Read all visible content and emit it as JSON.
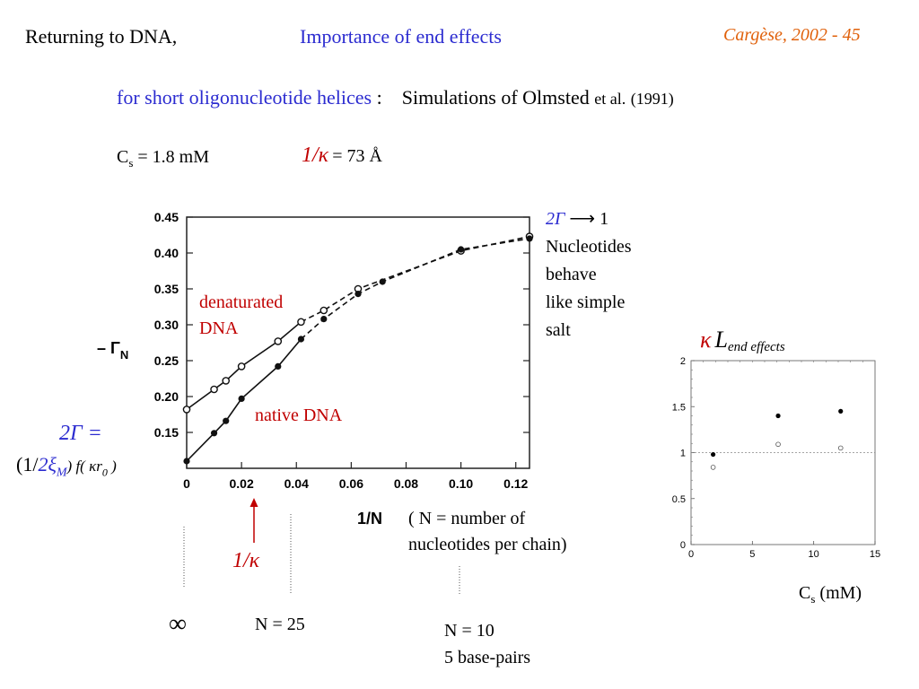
{
  "header": {
    "left": "Returning to DNA,",
    "center": "Importance of end effects",
    "right": "Cargèse, 2002 - 45"
  },
  "subtitle": {
    "blue_part": "for short oligonucleotide helices",
    "colon": ":",
    "black_part": "Simulations of Olmsted",
    "etal": "et al.",
    "year": "(1991)"
  },
  "params": {
    "cs_symbol": "C",
    "cs_sub": "s",
    "cs_value": "= 1.8 mM",
    "kappa_symbol": "1/κ",
    "kappa_value": "= 73 Å"
  },
  "annotations": {
    "gamma_top_sym": "2Γ",
    "gamma_top_arrow": "⟶",
    "gamma_top_val": "1",
    "nucleotides_lines": [
      "Nucleotides",
      "behave",
      "like simple",
      "salt"
    ],
    "denatured_lines": [
      "denaturated",
      "DNA"
    ],
    "native": "native DNA",
    "formula_top": "2Γ  =",
    "formula_paren_open": "(1/",
    "formula_xi": "2ξ",
    "formula_xi_sub": "M",
    "formula_rest": ") f( κr",
    "formula_r_sub": "0",
    "formula_close": " )",
    "n_def_lines": [
      "( N = number of",
      "nucleotides per chain)"
    ],
    "infinity": "∞",
    "inv_kappa_marker": "1/κ",
    "n25": "N = 25",
    "n10": "N = 10",
    "basepairs": "5 base-pairs",
    "kappa_l_sym": "κ",
    "kappa_l_L": "L",
    "kappa_l_sub": "end effects",
    "cs_mm_sym": "C",
    "cs_mm_sub": "s",
    "cs_mm_unit": "(mM)"
  },
  "colors": {
    "blue": "#2b2bd0",
    "red": "#c00000",
    "orange": "#e0600a"
  },
  "chart_data": [
    {
      "type": "line",
      "xlabel": "1/N",
      "ylabel": "– Γ",
      "ylabel_sub": "N",
      "xlim": [
        0,
        0.125
      ],
      "ylim": [
        0.1,
        0.45
      ],
      "xticks": [
        0,
        0.02,
        0.04,
        0.06,
        0.08,
        0.1,
        0.12
      ],
      "xtick_labels": [
        "0",
        "0.02",
        "0.04",
        "0.06",
        "0.08",
        "0.10",
        "0.12"
      ],
      "yticks": [
        0.15,
        0.2,
        0.25,
        0.3,
        0.35,
        0.4,
        0.45
      ],
      "ytick_labels": [
        "0.15",
        "0.20",
        "0.25",
        "0.30",
        "0.35",
        "0.40",
        "0.45"
      ],
      "series": [
        {
          "name": "denaturated DNA",
          "marker": "open",
          "solid_to": 0.042,
          "x": [
            0,
            0.01,
            0.0143,
            0.02,
            0.0333,
            0.0417,
            0.05,
            0.0625,
            0.1,
            0.125
          ],
          "y": [
            0.182,
            0.21,
            0.222,
            0.242,
            0.277,
            0.304,
            0.32,
            0.35,
            0.403,
            0.423
          ]
        },
        {
          "name": "native DNA",
          "marker": "filled",
          "solid_to": 0.042,
          "x": [
            0,
            0.01,
            0.0143,
            0.02,
            0.0333,
            0.0417,
            0.05,
            0.0625,
            0.0714,
            0.1,
            0.125
          ],
          "y": [
            0.11,
            0.149,
            0.166,
            0.197,
            0.242,
            0.28,
            0.308,
            0.343,
            0.36,
            0.405,
            0.42
          ]
        }
      ]
    },
    {
      "type": "scatter",
      "xlim": [
        0,
        15
      ],
      "ylim": [
        0,
        2
      ],
      "xticks": [
        0,
        5,
        10,
        15
      ],
      "xtick_labels": [
        "0",
        "5",
        "10",
        "15"
      ],
      "yticks": [
        0,
        0.5,
        1,
        1.5,
        2
      ],
      "ytick_labels": [
        "0",
        "0.5",
        "1",
        "1.5",
        "2"
      ],
      "reference_line_y": 1,
      "series": [
        {
          "marker": "filled",
          "x": [
            1.8,
            7.1,
            12.2
          ],
          "y": [
            0.98,
            1.4,
            1.45
          ]
        },
        {
          "marker": "open",
          "x": [
            1.8,
            7.1,
            12.2
          ],
          "y": [
            0.84,
            1.09,
            1.05
          ]
        }
      ]
    }
  ]
}
